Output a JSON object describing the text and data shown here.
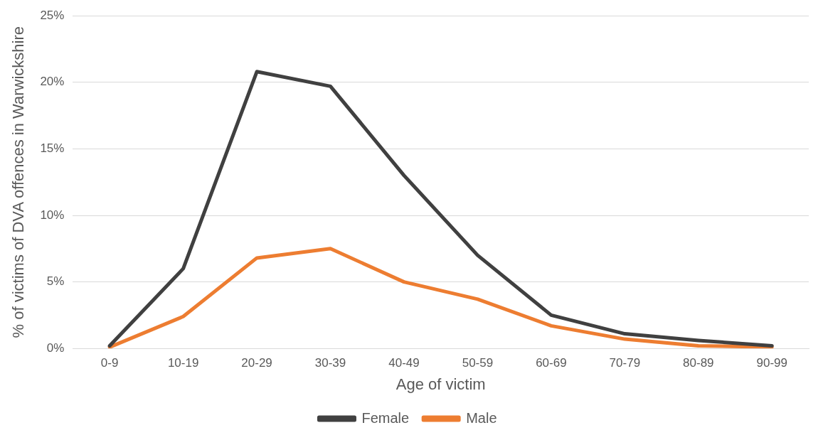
{
  "chart_data": {
    "type": "line",
    "xlabel": "Age of victim",
    "ylabel": "% of victims of DVA offences in Warwickshire",
    "categories": [
      "0-9",
      "10-19",
      "20-29",
      "30-39",
      "40-49",
      "50-59",
      "60-69",
      "70-79",
      "80-89",
      "90-99"
    ],
    "series": [
      {
        "name": "Female",
        "color": "#404040",
        "values": [
          0.2,
          6.0,
          20.8,
          19.7,
          13.0,
          7.0,
          2.5,
          1.1,
          0.6,
          0.2
        ]
      },
      {
        "name": "Male",
        "color": "#ed7d31",
        "values": [
          0.1,
          2.4,
          6.8,
          7.5,
          5.0,
          3.7,
          1.7,
          0.7,
          0.2,
          0.1
        ]
      }
    ],
    "ylim": [
      0,
      25
    ],
    "yticks": [
      {
        "value": 0,
        "label": "0%"
      },
      {
        "value": 5,
        "label": "5%"
      },
      {
        "value": 10,
        "label": "10%"
      },
      {
        "value": 15,
        "label": "15%"
      },
      {
        "value": 20,
        "label": "20%"
      },
      {
        "value": 25,
        "label": "25%"
      }
    ],
    "grid": "y",
    "legend": "bottom",
    "marker": "none",
    "line_style": "solid"
  }
}
